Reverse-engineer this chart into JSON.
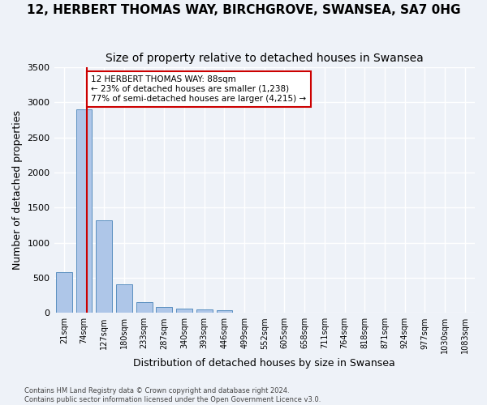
{
  "title": "12, HERBERT THOMAS WAY, BIRCHGROVE, SWANSEA, SA7 0HG",
  "subtitle": "Size of property relative to detached houses in Swansea",
  "xlabel": "Distribution of detached houses by size in Swansea",
  "ylabel": "Number of detached properties",
  "bins": [
    "21sqm",
    "74sqm",
    "127sqm",
    "180sqm",
    "233sqm",
    "287sqm",
    "340sqm",
    "393sqm",
    "446sqm",
    "499sqm",
    "552sqm",
    "605sqm",
    "658sqm",
    "711sqm",
    "764sqm",
    "818sqm",
    "871sqm",
    "924sqm",
    "977sqm",
    "1030sqm",
    "1083sqm"
  ],
  "bar_heights": [
    580,
    2900,
    1320,
    410,
    155,
    90,
    60,
    50,
    40,
    0,
    0,
    0,
    0,
    0,
    0,
    0,
    0,
    0,
    0,
    0,
    0
  ],
  "bar_color": "#aec6e8",
  "bar_edge_color": "#5a8fc0",
  "annotation_text": "12 HERBERT THOMAS WAY: 88sqm\n← 23% of detached houses are smaller (1,238)\n77% of semi-detached houses are larger (4,215) →",
  "annotation_box_color": "#ffffff",
  "annotation_box_edge_color": "#cc0000",
  "vline_color": "#cc0000",
  "vline_x_index": 1.15,
  "ylim": [
    0,
    3500
  ],
  "yticks": [
    0,
    500,
    1000,
    1500,
    2000,
    2500,
    3000,
    3500
  ],
  "bg_color": "#eef2f8",
  "grid_color": "#ffffff",
  "footer_line1": "Contains HM Land Registry data © Crown copyright and database right 2024.",
  "footer_line2": "Contains public sector information licensed under the Open Government Licence v3.0.",
  "title_fontsize": 11,
  "subtitle_fontsize": 10,
  "xlabel_fontsize": 9,
  "ylabel_fontsize": 9,
  "tick_fontsize": 7,
  "ytick_fontsize": 8,
  "annot_fontsize": 7.5
}
